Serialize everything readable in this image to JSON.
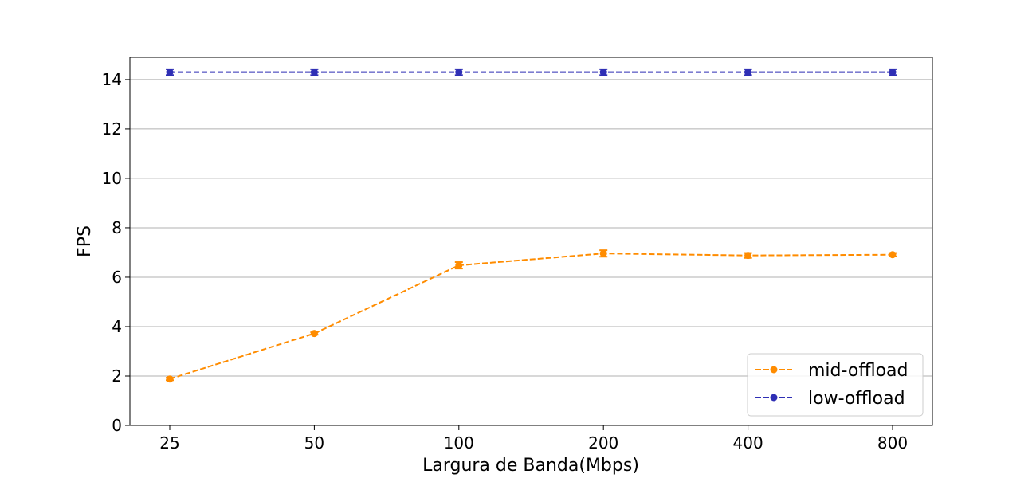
{
  "chart_data": {
    "type": "line",
    "title": "",
    "xlabel": "Largura de Banda(Mbps)",
    "ylabel": "FPS",
    "categories": [
      "25",
      "50",
      "100",
      "200",
      "400",
      "800"
    ],
    "ylim": [
      0,
      14.9
    ],
    "yticks": [
      0,
      2,
      4,
      6,
      8,
      10,
      12,
      14
    ],
    "grid": "horizontal",
    "legend_position": "lower-right",
    "series": [
      {
        "name": "mid-offload",
        "color": "#ff8c00",
        "line_style": "dashed",
        "marker": "circle",
        "values": [
          1.88,
          3.72,
          6.48,
          6.96,
          6.88,
          6.91
        ],
        "errors": [
          0.05,
          0.05,
          0.13,
          0.13,
          0.1,
          0.07
        ]
      },
      {
        "name": "low-offload",
        "color": "#2f2fb5",
        "line_style": "dashed",
        "marker": "circle",
        "values": [
          14.3,
          14.3,
          14.3,
          14.3,
          14.3,
          14.3
        ],
        "errors": [
          0.12,
          0.12,
          0.12,
          0.12,
          0.12,
          0.12
        ]
      }
    ]
  }
}
